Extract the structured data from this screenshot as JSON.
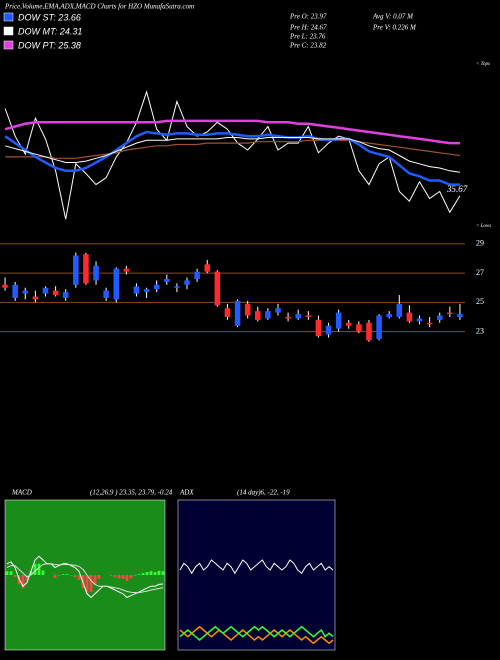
{
  "chart_data": [
    {
      "type": "line",
      "title": "Price,Volume,EMA,ADX,MACD Charts for HZO MunafaSutra.com",
      "series": [
        {
          "name": "DOW ST: 23.66",
          "color": "#1f5cff",
          "values": [
            27.5,
            27.0,
            26.5,
            26.0,
            25.6,
            25.2,
            25.0,
            25.0,
            25.2,
            25.6,
            26.0,
            26.5,
            27.0,
            27.5,
            27.8,
            27.7,
            27.6,
            27.7,
            27.7,
            27.6,
            27.6,
            27.7,
            27.7,
            27.6,
            27.5,
            27.5,
            27.6,
            27.5,
            27.4,
            27.4,
            27.5,
            27.3,
            27.2,
            27.3,
            27.3,
            26.9,
            26.4,
            26.2,
            26.0,
            25.4,
            24.8,
            24.6,
            24.3,
            24.3,
            24.0,
            24.0
          ]
        },
        {
          "name": "DOW MT: 24.31",
          "color": "#ffffff",
          "values": [
            26.8,
            26.6,
            26.4,
            26.2,
            26.0,
            25.8,
            25.6,
            25.6,
            25.7,
            25.9,
            26.1,
            26.4,
            26.7,
            27.0,
            27.2,
            27.2,
            27.2,
            27.3,
            27.3,
            27.3,
            27.3,
            27.3,
            27.4,
            27.4,
            27.3,
            27.3,
            27.4,
            27.4,
            27.4,
            27.4,
            27.4,
            27.3,
            27.3,
            27.3,
            27.3,
            27.1,
            26.8,
            26.6,
            26.5,
            26.1,
            25.7,
            25.5,
            25.3,
            25.2,
            25.0,
            24.9
          ]
        },
        {
          "name": "DOW PT: 25.38",
          "color": "#e040e0",
          "values": [
            28.0,
            28.2,
            28.4,
            28.5,
            28.5,
            28.5,
            28.5,
            28.5,
            28.5,
            28.5,
            28.5,
            28.5,
            28.5,
            28.5,
            28.5,
            28.5,
            28.6,
            28.6,
            28.6,
            28.6,
            28.6,
            28.6,
            28.6,
            28.6,
            28.6,
            28.6,
            28.5,
            28.5,
            28.5,
            28.4,
            28.4,
            28.3,
            28.2,
            28.1,
            28.0,
            27.9,
            27.8,
            27.7,
            27.6,
            27.5,
            27.4,
            27.3,
            27.2,
            27.1,
            27.0,
            27.0
          ]
        }
      ],
      "lines": [
        {
          "color": "#ffffff",
          "values": [
            29.5,
            27.5,
            26.2,
            28.8,
            27.3,
            25.0,
            21.5,
            25.5,
            24.8,
            24.0,
            24.5,
            26.0,
            27.0,
            28.5,
            30.7,
            28.0,
            27.2,
            30.0,
            28.2,
            27.5,
            27.8,
            28.5,
            28.0,
            27.0,
            26.5,
            27.3,
            28.2,
            26.5,
            27.0,
            27.0,
            28.2,
            26.3,
            27.0,
            27.5,
            27.3,
            25.0,
            24.0,
            25.5,
            26.0,
            23.5,
            22.8,
            24.2,
            23.0,
            23.5,
            22.0,
            23.2
          ]
        },
        {
          "color": "#a0522d",
          "values": [
            26.0,
            26.0,
            26.0,
            26.0,
            26.0,
            25.9,
            25.9,
            25.9,
            26.0,
            26.1,
            26.2,
            26.3,
            26.5,
            26.6,
            26.7,
            26.8,
            26.8,
            26.9,
            26.9,
            26.9,
            27.0,
            27.0,
            27.0,
            27.0,
            27.0,
            27.1,
            27.1,
            27.1,
            27.1,
            27.1,
            27.2,
            27.2,
            27.2,
            27.2,
            27.2,
            27.1,
            27.0,
            26.9,
            26.8,
            26.7,
            26.6,
            26.5,
            26.4,
            26.3,
            26.2,
            26.1
          ]
        }
      ],
      "ylim": [
        20,
        33
      ],
      "annotations": [
        "Pre  O: 23.97",
        "Pre  H: 24.67",
        "Pre  L: 23.76",
        "Pre  C: 23.82",
        "Avg V: 0.07 M",
        "Pre  V: 0.226  M",
        "35.67",
        "< Tops",
        "< Lows"
      ]
    },
    {
      "type": "candlestick",
      "open": [
        26.2,
        25.3,
        25.6,
        25.4,
        25.6,
        25.8,
        25.3,
        26.2,
        28.3,
        26.5,
        25.3,
        25.2,
        27.3,
        25.6,
        25.7,
        25.9,
        26.4,
        26.0,
        26.2,
        26.6,
        27.6,
        27.1,
        24.6,
        23.4,
        24.9,
        24.4,
        23.9,
        24.3,
        24.0,
        23.9,
        24.1,
        23.8,
        22.8,
        23.2,
        23.6,
        23.5,
        23.6,
        22.5,
        24.0,
        24.0,
        24.3,
        23.7,
        23.6,
        23.8,
        24.3,
        24.0
      ],
      "high": [
        26.7,
        26.4,
        26.0,
        25.8,
        26.1,
        26.1,
        25.9,
        28.4,
        28.4,
        27.8,
        26.0,
        27.4,
        27.5,
        26.3,
        26.0,
        26.5,
        26.9,
        26.3,
        26.7,
        27.3,
        27.9,
        27.2,
        24.9,
        25.2,
        25.1,
        24.7,
        24.6,
        24.9,
        24.3,
        24.5,
        24.4,
        24.1,
        23.6,
        24.5,
        23.8,
        23.7,
        23.8,
        24.2,
        24.4,
        25.5,
        24.8,
        24.1,
        24.0,
        24.3,
        24.7,
        24.9
      ],
      "low": [
        25.8,
        25.1,
        25.2,
        25.0,
        25.4,
        25.4,
        25.1,
        26.0,
        26.2,
        26.2,
        25.1,
        25.0,
        26.9,
        25.4,
        25.3,
        25.7,
        26.2,
        25.7,
        25.9,
        26.4,
        27.0,
        24.7,
        23.8,
        23.3,
        23.9,
        23.7,
        23.8,
        24.1,
        23.7,
        23.8,
        23.8,
        22.6,
        22.6,
        23.0,
        23.2,
        22.9,
        22.3,
        22.4,
        23.9,
        23.9,
        23.6,
        23.5,
        23.3,
        23.6,
        24.0,
        23.8
      ],
      "close": [
        26.0,
        26.2,
        25.8,
        25.2,
        26.0,
        25.5,
        25.7,
        28.2,
        26.3,
        27.5,
        25.8,
        27.3,
        27.1,
        26.1,
        25.9,
        26.2,
        26.6,
        26.1,
        26.5,
        27.1,
        27.1,
        24.8,
        24.0,
        25.1,
        24.1,
        23.8,
        24.4,
        24.6,
        23.9,
        24.2,
        24.0,
        22.7,
        23.4,
        24.3,
        23.4,
        23.0,
        22.4,
        24.1,
        24.2,
        24.9,
        23.7,
        23.9,
        23.5,
        24.1,
        24.2,
        24.2
      ],
      "up_color": "#1f5cff",
      "down_color": "#ff2a2a",
      "grid_color": "#8b4a1c",
      "ylim": [
        21.4,
        29.4
      ],
      "yticks": [
        29,
        27,
        25,
        23
      ],
      "grid": true
    },
    {
      "type": "macd",
      "title": "MACD",
      "subtitle": "(12,26,9 ) 23.35, 23.79, -0.24",
      "background": "#1a8c1a",
      "lines": [
        {
          "color": "#ffffff",
          "values": [
            0.3,
            0.35,
            0.2,
            -0.1,
            -0.3,
            -0.2,
            0.1,
            0.4,
            0.5,
            0.4,
            0.3,
            0.3,
            0.2,
            0.25,
            0.3,
            0.3,
            0.25,
            0.2,
            0.1,
            -0.2,
            -0.5,
            -0.6,
            -0.5,
            -0.4,
            -0.3,
            -0.3,
            -0.35,
            -0.4,
            -0.45,
            -0.5,
            -0.6,
            -0.55,
            -0.5,
            -0.45,
            -0.4,
            -0.35,
            -0.3,
            -0.3,
            -0.25,
            -0.24
          ]
        },
        {
          "color": "#dddddd",
          "values": [
            0.2,
            0.25,
            0.25,
            0.15,
            0.05,
            -0.05,
            0.0,
            0.1,
            0.2,
            0.28,
            0.3,
            0.3,
            0.28,
            0.27,
            0.28,
            0.28,
            0.27,
            0.26,
            0.23,
            0.15,
            0.0,
            -0.15,
            -0.25,
            -0.3,
            -0.3,
            -0.3,
            -0.32,
            -0.34,
            -0.36,
            -0.4,
            -0.44,
            -0.46,
            -0.47,
            -0.47,
            -0.45,
            -0.43,
            -0.4,
            -0.38,
            -0.36,
            -0.34
          ]
        }
      ],
      "histogram": [
        0.1,
        0.1,
        -0.05,
        -0.25,
        -0.35,
        -0.15,
        0.1,
        0.3,
        0.3,
        0.12,
        0,
        0,
        -0.08,
        -0.02,
        0.02,
        0.02,
        -0.02,
        -0.06,
        -0.13,
        -0.35,
        -0.5,
        -0.45,
        -0.25,
        -0.1,
        0,
        0,
        -0.03,
        -0.06,
        -0.09,
        -0.1,
        -0.16,
        -0.09,
        -0.03,
        0.02,
        0.05,
        0.08,
        0.1,
        0.08,
        0.11,
        0.1
      ],
      "pos_color": "#33ff33",
      "neg_color": "#ff4444",
      "ylim": [
        -2,
        2
      ]
    },
    {
      "type": "adx",
      "title": "ADX",
      "subtitle": "(14 day)6, -22, -19",
      "background": "#000033",
      "lines": [
        {
          "color": "#ffffff",
          "values": [
            24,
            26,
            25,
            23,
            25,
            26,
            24,
            25,
            27,
            26,
            25,
            24,
            26,
            25,
            23,
            25,
            27,
            26,
            24,
            25,
            26,
            27,
            25,
            24,
            26,
            25,
            24,
            25,
            27,
            26,
            24,
            23,
            25,
            26,
            24,
            25,
            26,
            24,
            25,
            24
          ]
        },
        {
          "color": "#ff8c00",
          "values": [
            6,
            5,
            4,
            5,
            6,
            7,
            6,
            5,
            4,
            5,
            6,
            5,
            4,
            3,
            4,
            5,
            6,
            5,
            4,
            3,
            4,
            3,
            4,
            5,
            6,
            5,
            4,
            5,
            6,
            5,
            4,
            3,
            4,
            3,
            2,
            3,
            4,
            3,
            2,
            3
          ]
        },
        {
          "color": "#33ff33",
          "values": [
            4,
            5,
            6,
            5,
            4,
            3,
            4,
            5,
            6,
            7,
            6,
            5,
            6,
            7,
            6,
            5,
            4,
            5,
            6,
            7,
            6,
            7,
            6,
            5,
            4,
            5,
            6,
            5,
            4,
            5,
            6,
            7,
            6,
            5,
            4,
            5,
            6,
            4,
            5,
            4
          ]
        }
      ],
      "ylim": [
        0,
        45
      ]
    }
  ]
}
